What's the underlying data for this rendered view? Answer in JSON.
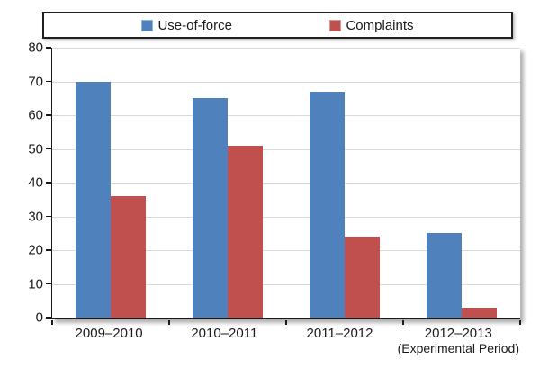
{
  "legend": {
    "items": [
      {
        "label": "Use-of-force",
        "swatch": "blue-square-icon",
        "color": "#4F81BD"
      },
      {
        "label": "Complaints",
        "swatch": "red-square-icon",
        "color": "#C0504D"
      }
    ],
    "position": "top"
  },
  "chart_data": {
    "type": "bar",
    "categories": [
      "2009–2010",
      "2010–2011",
      "2011–2012",
      "2012–2013"
    ],
    "category_sublabels": [
      "",
      "",
      "",
      "(Experimental Period)"
    ],
    "series": [
      {
        "name": "Use-of-force",
        "color": "#4F81BD",
        "values": [
          70,
          65,
          67,
          25
        ]
      },
      {
        "name": "Complaints",
        "color": "#C0504D",
        "values": [
          36,
          51,
          24,
          3
        ]
      }
    ],
    "ylim": [
      0,
      80
    ],
    "yticks": [
      0,
      10,
      20,
      30,
      40,
      50,
      60,
      70,
      80
    ],
    "grid": "horizontal",
    "gridline_color": "#D9D9D9",
    "axis_color": "#1a1a1a",
    "legend_position": "top"
  }
}
